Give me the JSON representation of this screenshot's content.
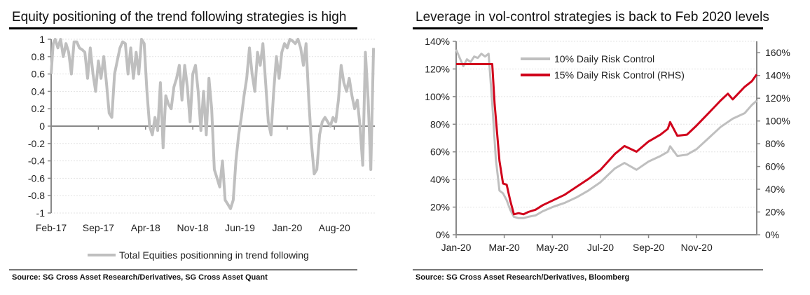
{
  "chart_data": [
    {
      "type": "line",
      "title": "Equity positioning of the trend following strategies is high",
      "source": "Source: SG Cross Asset Research/Derivatives, SG Cross Asset Quant",
      "xlabel": "",
      "ylabel": "",
      "x_ticks": [
        "Feb-17",
        "Sep-17",
        "Apr-18",
        "Nov-18",
        "Jun-19",
        "Jan-20",
        "Aug-20"
      ],
      "y_ticks": [
        "1",
        "0.8",
        "0.6",
        "0.4",
        "0.2",
        "0",
        "-0.2",
        "-0.4",
        "-0.6",
        "-0.8",
        "-1"
      ],
      "ylim": [
        -1,
        1
      ],
      "xlim_months": [
        0,
        48
      ],
      "grid": true,
      "legend_position": "bottom",
      "series": [
        {
          "name": "Total Equities positionning in trend following",
          "color": "#bfbfbf",
          "x_months": [
            0,
            0.3,
            0.6,
            1,
            1.4,
            1.8,
            2.2,
            2.6,
            3,
            3.4,
            3.8,
            4.2,
            4.6,
            5,
            5.4,
            5.8,
            6.2,
            6.6,
            7,
            7.4,
            7.8,
            8.2,
            8.6,
            9,
            9.4,
            9.8,
            10.2,
            10.6,
            11,
            11.4,
            11.8,
            12.2,
            12.6,
            13,
            13.4,
            13.8,
            14.2,
            14.6,
            15,
            15.4,
            15.8,
            16.2,
            16.6,
            17,
            17.4,
            17.8,
            18.2,
            18.6,
            19,
            19.4,
            19.8,
            20.2,
            20.6,
            21,
            21.4,
            21.8,
            22.2,
            22.6,
            23,
            23.4,
            23.8,
            24.2,
            24.6,
            25,
            25.4,
            25.8,
            26.2,
            26.6,
            27,
            27.4,
            27.8,
            28.2,
            28.6,
            29,
            29.4,
            29.8,
            30.2,
            30.6,
            31,
            31.4,
            31.8,
            32.2,
            32.6,
            33,
            33.4,
            33.8,
            34.2,
            34.6,
            35,
            35.4,
            35.8,
            36.2,
            36.6,
            37,
            37.4,
            37.8,
            38.2,
            38.6,
            39,
            39.4,
            39.8,
            40.2,
            40.6,
            41,
            41.4,
            41.8,
            42.2,
            42.6,
            43,
            43.4,
            43.8,
            44.2,
            44.6,
            45,
            45.4,
            45.8,
            46.2,
            46.6,
            47,
            47.4,
            47.8
          ],
          "values": [
            0.6,
            0.95,
            1,
            0.9,
            1,
            0.8,
            0.95,
            0.85,
            0.6,
            0.97,
            0.97,
            0.9,
            0.88,
            0.85,
            0.55,
            0.9,
            0.6,
            0.4,
            0.75,
            0.55,
            0.8,
            0.5,
            0.15,
            0.1,
            0.6,
            0.75,
            0.9,
            0.97,
            0.95,
            0.6,
            0.9,
            0.55,
            0.85,
            0.6,
            1,
            0.95,
            0.4,
            0,
            -0.1,
            0.1,
            -0.05,
            0.5,
            -0.25,
            0.35,
            0.25,
            0.2,
            0.45,
            0.55,
            0.7,
            0.3,
            0.7,
            0.45,
            0.05,
            0.6,
            0.7,
            0.4,
            -0.05,
            0.4,
            -0.1,
            0.55,
            0.2,
            -0.5,
            -0.6,
            -0.7,
            -0.4,
            -0.85,
            -0.9,
            -0.95,
            -0.85,
            -0.4,
            -0.1,
            0.1,
            0.35,
            0.55,
            0.9,
            0.6,
            0.4,
            0.85,
            0.7,
            0.95,
            0.5,
            0.05,
            -0.1,
            0.4,
            0.8,
            0.55,
            0.85,
            0.95,
            0.9,
            1,
            0.98,
            0.95,
            1,
            0.9,
            0.7,
            0.95,
            0.3,
            -0.2,
            -0.55,
            -0.5,
            -0.1,
            0.05,
            0.1,
            0.05,
            0,
            0.1,
            0.05,
            0.3,
            0.7,
            0.5,
            0.4,
            0.55,
            0.35,
            0.2,
            0.3,
            0,
            -0.45,
            0.85,
            0.3,
            -0.5,
            0.9,
            0.95,
            0.85,
            0.8,
            0.6,
            0.9,
            0.95,
            0.6
          ]
        }
      ]
    },
    {
      "type": "line",
      "title": "Leverage in vol-control strategies is back to Feb 2020 levels",
      "source": "Source: SG Cross Asset Research/Derivatives, Bloomberg",
      "xlabel": "",
      "ylabel": "",
      "x_ticks": [
        "Jan-20",
        "Mar-20",
        "May-20",
        "Jul-20",
        "Sep-20",
        "Nov-20"
      ],
      "y_ticks_left": [
        "140%",
        "120%",
        "100%",
        "80%",
        "60%",
        "40%",
        "20%",
        "0%"
      ],
      "y_ticks_right": [
        "160%",
        "140%",
        "120%",
        "100%",
        "80%",
        "60%",
        "40%",
        "20%",
        "0%"
      ],
      "ylim_left": [
        0,
        140
      ],
      "ylim_right": [
        0,
        170
      ],
      "xlim_months": [
        0,
        12.5
      ],
      "grid": true,
      "legend_position": "top-center",
      "series": [
        {
          "name": "10% Daily Risk Control",
          "axis": "left",
          "color": "#bfbfbf",
          "x_months": [
            0,
            0.15,
            0.3,
            0.45,
            0.6,
            0.75,
            0.9,
            1.05,
            1.2,
            1.35,
            1.5,
            1.65,
            1.8,
            1.95,
            2.1,
            2.25,
            2.4,
            2.6,
            2.8,
            3,
            3.3,
            3.6,
            4,
            4.5,
            5,
            5.5,
            6,
            6.3,
            6.6,
            7,
            7.5,
            8,
            8.5,
            8.8,
            8.9,
            9.2,
            9.6,
            10,
            10.5,
            11,
            11.5,
            12,
            12.3,
            12.5
          ],
          "values": [
            134,
            128,
            122,
            127,
            125,
            129,
            128,
            131,
            129,
            131,
            95,
            55,
            32,
            30,
            25,
            18,
            13,
            12,
            12,
            13,
            14,
            17,
            20,
            23,
            27,
            32,
            38,
            43,
            48,
            52,
            47,
            53,
            57,
            60,
            64,
            57,
            58,
            62,
            70,
            78,
            84,
            88,
            94,
            97
          ]
        },
        {
          "name": "15% Daily Risk Control (RHS)",
          "axis": "right",
          "color": "#d0021b",
          "x_months": [
            0,
            0.5,
            1,
            1.5,
            1.6,
            1.8,
            1.95,
            2.1,
            2.25,
            2.4,
            2.6,
            2.8,
            3,
            3.3,
            3.6,
            4,
            4.5,
            5,
            5.5,
            6,
            6.3,
            6.6,
            7,
            7.5,
            8,
            8.5,
            8.8,
            8.9,
            9.2,
            9.6,
            10,
            10.5,
            11,
            11.3,
            11.5,
            12,
            12.3,
            12.5
          ],
          "values": [
            150,
            150,
            150,
            150,
            115,
            65,
            45,
            44,
            30,
            18,
            19,
            18,
            20,
            22,
            26,
            30,
            35,
            42,
            49,
            57,
            64,
            71,
            78,
            73,
            82,
            88,
            93,
            99,
            87,
            88,
            96,
            107,
            118,
            124,
            119,
            130,
            135,
            141
          ]
        }
      ]
    }
  ]
}
